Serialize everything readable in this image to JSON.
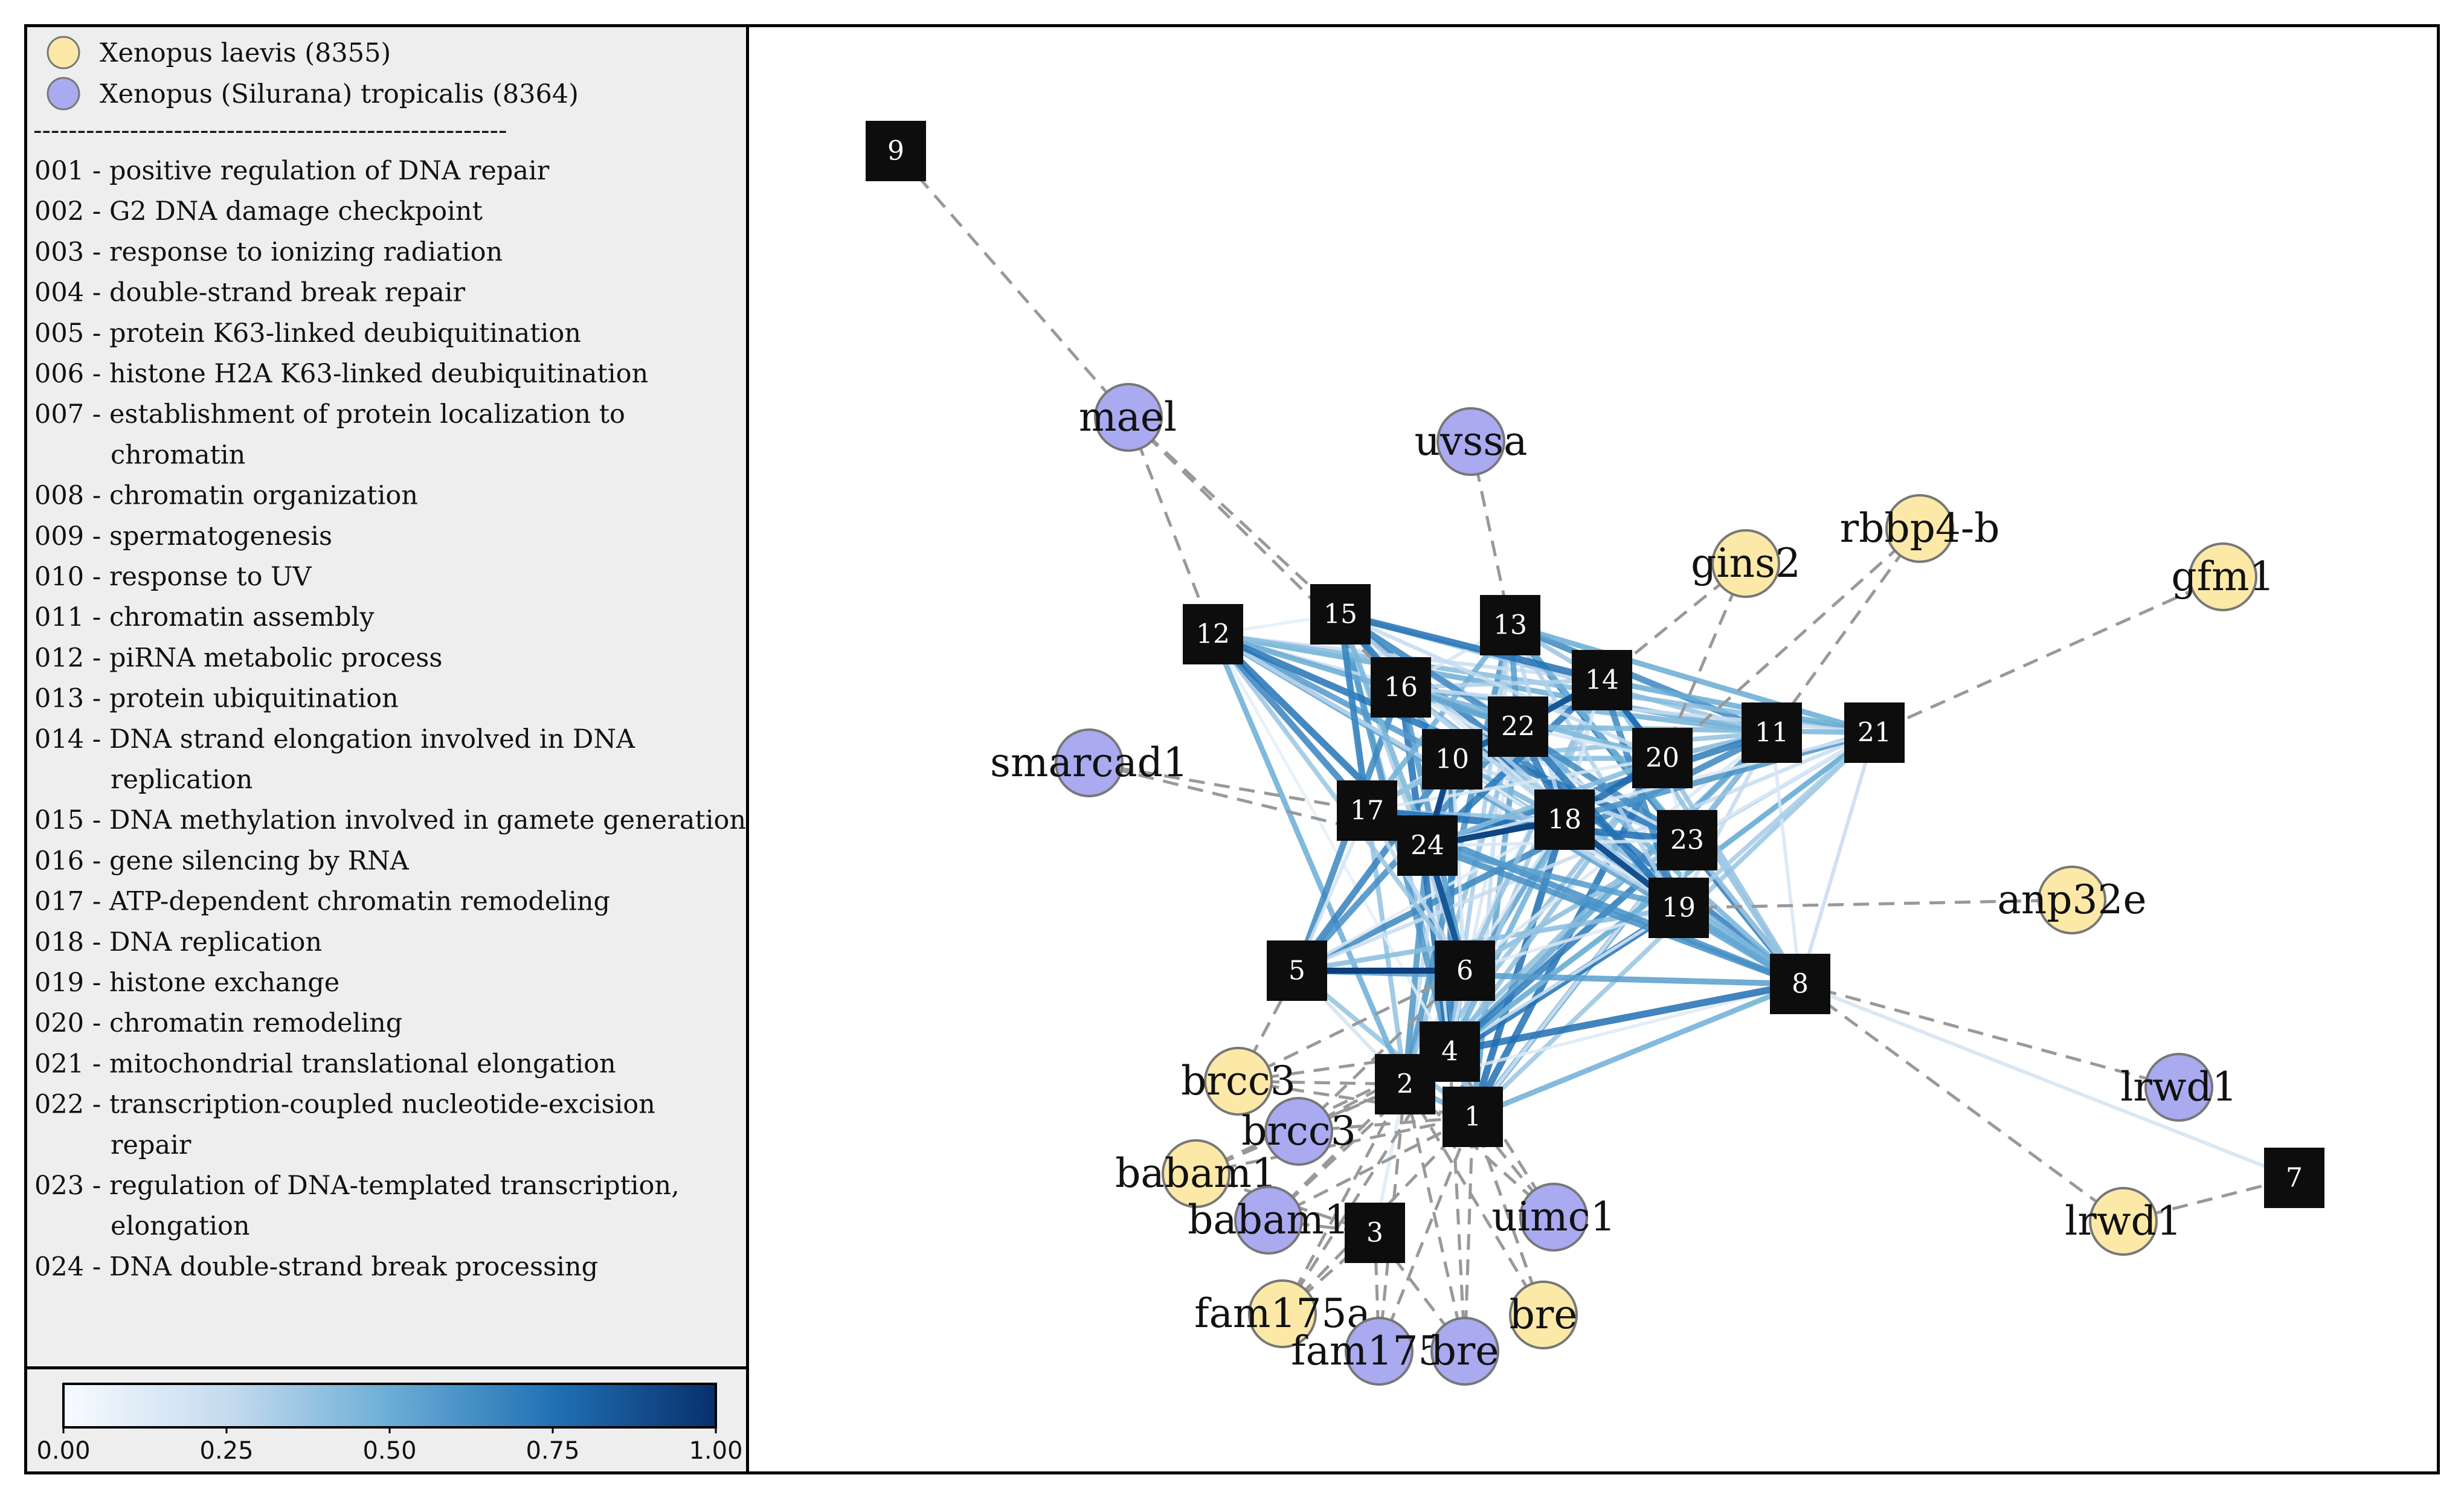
{
  "legend": {
    "species": [
      {
        "label": "Xenopus laevis (8355)",
        "color": "#fce9a8"
      },
      {
        "label": "Xenopus (Silurana) tropicalis (8364)",
        "color": "#a9aaf0"
      }
    ],
    "separator": "------------------------------------------------------",
    "terms": [
      {
        "id": "001",
        "lines": [
          "001 - positive regulation of DNA repair"
        ]
      },
      {
        "id": "002",
        "lines": [
          "002 - G2 DNA damage checkpoint"
        ]
      },
      {
        "id": "003",
        "lines": [
          "003 - response to ionizing radiation"
        ]
      },
      {
        "id": "004",
        "lines": [
          "004 - double-strand break repair"
        ]
      },
      {
        "id": "005",
        "lines": [
          "005 - protein K63-linked deubiquitination"
        ]
      },
      {
        "id": "006",
        "lines": [
          "006 - histone H2A K63-linked deubiquitination"
        ]
      },
      {
        "id": "007",
        "lines": [
          "007 - establishment of protein localization to",
          "chromatin"
        ]
      },
      {
        "id": "008",
        "lines": [
          "008 - chromatin organization"
        ]
      },
      {
        "id": "009",
        "lines": [
          "009 - spermatogenesis"
        ]
      },
      {
        "id": "010",
        "lines": [
          "010 - response to UV"
        ]
      },
      {
        "id": "011",
        "lines": [
          "011 - chromatin assembly"
        ]
      },
      {
        "id": "012",
        "lines": [
          "012 - piRNA metabolic process"
        ]
      },
      {
        "id": "013",
        "lines": [
          "013 - protein ubiquitination"
        ]
      },
      {
        "id": "014",
        "lines": [
          "014 - DNA strand elongation involved in DNA",
          "replication"
        ]
      },
      {
        "id": "015",
        "lines": [
          "015 - DNA methylation involved in gamete generation"
        ]
      },
      {
        "id": "016",
        "lines": [
          "016 - gene silencing by RNA"
        ]
      },
      {
        "id": "017",
        "lines": [
          "017 - ATP-dependent chromatin remodeling"
        ]
      },
      {
        "id": "018",
        "lines": [
          "018 - DNA replication"
        ]
      },
      {
        "id": "019",
        "lines": [
          "019 - histone exchange"
        ]
      },
      {
        "id": "020",
        "lines": [
          "020 - chromatin remodeling"
        ]
      },
      {
        "id": "021",
        "lines": [
          "021 - mitochondrial translational elongation"
        ]
      },
      {
        "id": "022",
        "lines": [
          "022 - transcription-coupled nucleotide-excision",
          "repair"
        ]
      },
      {
        "id": "023",
        "lines": [
          "023 - regulation of DNA-templated transcription,",
          "elongation"
        ]
      },
      {
        "id": "024",
        "lines": [
          "024 - DNA double-strand break processing"
        ]
      }
    ]
  },
  "colorbar": {
    "ticks": [
      "0.00",
      "0.25",
      "0.50",
      "0.75",
      "1.00"
    ],
    "tick_values": [
      0,
      0.25,
      0.5,
      0.75,
      1.0
    ],
    "gradient": [
      "#f7fbff",
      "#c6dbef",
      "#6baed6",
      "#2171b5",
      "#08306b"
    ]
  },
  "graph": {
    "gene_nodes": [
      {
        "label": "mael",
        "species": 1
      },
      {
        "label": "uvssa",
        "species": 1
      },
      {
        "label": "gins2",
        "species": 0
      },
      {
        "label": "rbbp4-b",
        "species": 0
      },
      {
        "label": "gfm1",
        "species": 0
      },
      {
        "label": "smarcad1",
        "species": 1
      },
      {
        "label": "anp32e",
        "species": 0
      },
      {
        "label": "lrwd1",
        "species": 1
      },
      {
        "label": "lrwd1",
        "species": 0
      },
      {
        "label": "brcc3",
        "species": 0
      },
      {
        "label": "brcc3",
        "species": 1
      },
      {
        "label": "babam1",
        "species": 0
      },
      {
        "label": "babam1",
        "species": 1
      },
      {
        "label": "uimc1",
        "species": 1
      },
      {
        "label": "fam175a",
        "species": 0
      },
      {
        "label": "fam175a",
        "species": 1
      },
      {
        "label": "bre",
        "species": 1
      },
      {
        "label": "bre",
        "species": 0
      }
    ],
    "term_nodes": [
      "1",
      "2",
      "3",
      "4",
      "5",
      "6",
      "7",
      "8",
      "9",
      "10",
      "11",
      "12",
      "13",
      "14",
      "15",
      "16",
      "17",
      "18",
      "19",
      "20",
      "21",
      "22",
      "23",
      "24"
    ]
  }
}
